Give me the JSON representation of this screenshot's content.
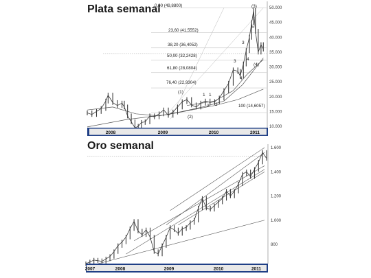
{
  "colors": {
    "axis_band": "#1f3f86",
    "price": "#3a3a3a",
    "grid": "#b8b8b8",
    "trend": "#555555"
  },
  "chart_data": [
    {
      "type": "line",
      "title": "Plata semanal",
      "years": [
        "2008",
        "2009",
        "2010",
        "2011"
      ],
      "y_ticks": [
        "50.000",
        "45.000",
        "40.000",
        "35.000",
        "30.000",
        "25.000",
        "20.000",
        "15.000",
        "10.000"
      ],
      "ylim": [
        8,
        52
      ],
      "fib_levels": [
        {
          "label": "0,00 (49,8800)",
          "value": 49.88
        },
        {
          "label": "23,60 (41,5552)",
          "value": 41.5552
        },
        {
          "label": "38,20 (36,4052)",
          "value": 36.4052
        },
        {
          "label": "50,00 (32,2428)",
          "value": 32.2428
        },
        {
          "label": "61,80 (28,0804)",
          "value": 28.0804
        },
        {
          "label": "76,40 (22,9304)",
          "value": 22.9304
        },
        {
          "label": "100 (14,6057)",
          "value": 14.6057
        }
      ],
      "wave_labels": [
        "(3)",
        "5",
        "3",
        "4",
        "(4)",
        "3",
        "4",
        "(1)",
        "1",
        "1",
        "2",
        "2",
        "(2)"
      ],
      "series": [
        {
          "x": [
            2007.75,
            2007.85,
            2007.95,
            2008.05,
            2008.15,
            2008.2,
            2008.3,
            2008.4,
            2008.5,
            2008.55,
            2008.62,
            2008.7,
            2008.78,
            2008.85,
            2008.92,
            2009.0,
            2009.1,
            2009.2,
            2009.3,
            2009.4,
            2009.5,
            2009.6,
            2009.7,
            2009.8,
            2009.9,
            2010.0,
            2010.1,
            2010.2,
            2010.3,
            2010.4,
            2010.5,
            2010.6,
            2010.7,
            2010.8,
            2010.9,
            2011.0,
            2011.05,
            2011.12,
            2011.18,
            2011.25,
            2011.3,
            2011.34,
            2011.38,
            2011.44,
            2011.5,
            2011.55
          ],
          "values": [
            14.5,
            14.0,
            15.0,
            16.0,
            18.5,
            20.5,
            18.0,
            17.0,
            17.8,
            16.5,
            13.5,
            11.5,
            9.5,
            10.0,
            11.3,
            11.5,
            13.5,
            13.2,
            14.2,
            15.5,
            13.7,
            14.8,
            16.5,
            18.3,
            19.0,
            17.2,
            16.5,
            17.8,
            18.5,
            18.0,
            18.3,
            19.5,
            22.0,
            24.5,
            29.0,
            28.5,
            27.0,
            31.0,
            35.5,
            40.0,
            45.0,
            49.0,
            42.0,
            35.0,
            37.5,
            36.0
          ]
        }
      ]
    },
    {
      "type": "line",
      "title": "Oro semanal",
      "years": [
        "2007",
        "2008",
        "2009",
        "2010",
        "2011"
      ],
      "y_ticks": [
        "1.600",
        "1.400",
        "1.200",
        "1.000",
        "800"
      ],
      "ylim": [
        600,
        1620
      ],
      "series": [
        {
          "x": [
            2007.0,
            2007.1,
            2007.2,
            2007.3,
            2007.4,
            2007.5,
            2007.6,
            2007.7,
            2007.8,
            2007.9,
            2008.0,
            2008.1,
            2008.2,
            2008.3,
            2008.4,
            2008.5,
            2008.6,
            2008.7,
            2008.8,
            2008.9,
            2009.0,
            2009.1,
            2009.2,
            2009.3,
            2009.4,
            2009.5,
            2009.6,
            2009.7,
            2009.8,
            2009.9,
            2010.0,
            2010.1,
            2010.2,
            2010.3,
            2010.4,
            2010.5,
            2010.6,
            2010.7,
            2010.8,
            2010.9,
            2011.0,
            2011.1,
            2011.2,
            2011.3,
            2011.4,
            2011.5
          ],
          "values": [
            640,
            655,
            670,
            665,
            660,
            680,
            700,
            740,
            790,
            820,
            860,
            930,
            990,
            910,
            880,
            920,
            860,
            740,
            720,
            790,
            860,
            940,
            920,
            890,
            930,
            940,
            980,
            1000,
            1100,
            1180,
            1100,
            1090,
            1120,
            1150,
            1180,
            1240,
            1200,
            1240,
            1300,
            1380,
            1400,
            1360,
            1420,
            1480,
            1560,
            1510
          ]
        }
      ]
    }
  ]
}
